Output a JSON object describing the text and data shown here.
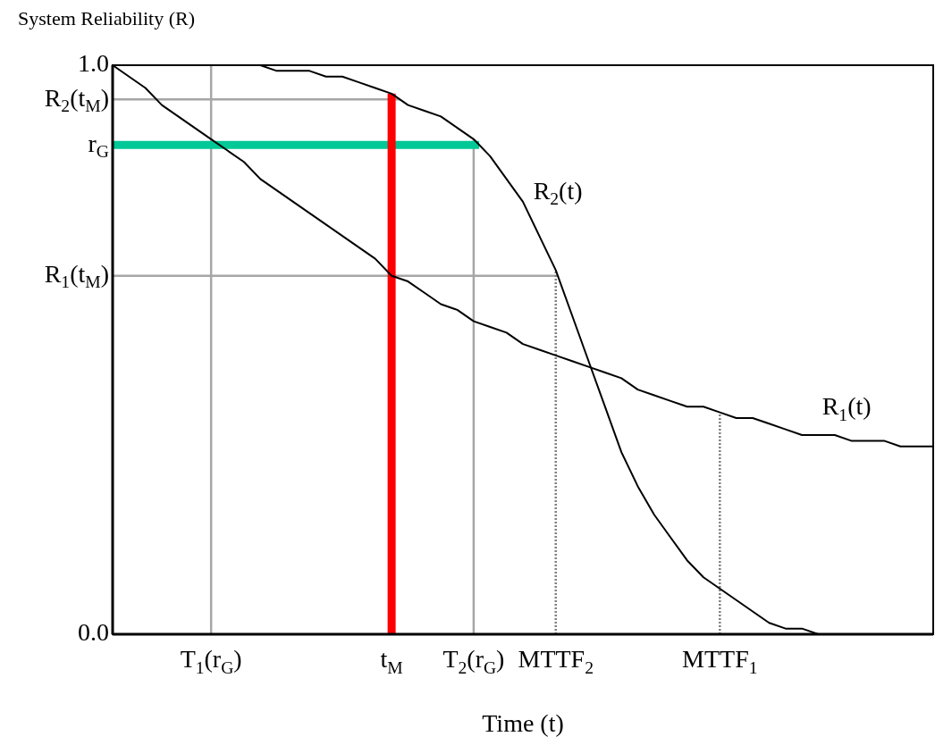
{
  "chart_data": {
    "type": "line",
    "title": "System Reliability (R)",
    "xlabel": "Time (t)",
    "categories": [
      null,
      null,
      null,
      null,
      null,
      null,
      "T$_{1}$(r$_{G}$)",
      null,
      null,
      null,
      null,
      null,
      null,
      null,
      null,
      null,
      null,
      "t$_{M}$",
      null,
      null,
      null,
      null,
      "T$_{2}$(r$_{G}$)",
      null,
      null,
      null,
      null,
      "MTTF$_{2}$",
      null,
      null,
      null,
      null,
      null,
      null,
      null,
      null,
      null,
      "MTTF$_{1}$",
      null,
      null,
      null,
      null,
      null,
      null,
      null,
      null,
      null,
      null,
      null,
      null,
      null
    ],
    "ylim": [
      0,
      1
    ],
    "yticks": [
      {
        "value": 0,
        "label": "0.0"
      },
      {
        "value": 1,
        "label": "1.0"
      }
    ],
    "series": [
      {
        "name": "R$_{1}$(t)",
        "color": "#000000",
        "values": [
          1,
          0.98,
          0.96,
          0.93,
          0.91,
          0.89,
          0.87,
          0.85,
          0.83,
          0.8,
          0.78,
          0.76,
          0.74,
          0.72,
          0.7,
          0.68,
          0.66,
          0.63,
          0.62,
          0.6,
          0.58,
          0.57,
          0.55,
          0.54,
          0.53,
          0.51,
          0.5,
          0.49,
          0.48,
          0.47,
          0.46,
          0.45,
          0.43,
          0.42,
          0.41,
          0.4,
          0.4,
          0.39,
          0.38,
          0.38,
          0.37,
          0.36,
          0.35,
          0.35,
          0.35,
          0.34,
          0.34,
          0.34,
          0.33,
          0.33,
          0.33
        ]
      },
      {
        "name": "R$_{2}$(t)",
        "color": "#000000",
        "values": [
          1,
          1,
          1,
          1,
          1,
          1,
          1,
          1,
          1,
          1,
          0.99,
          0.99,
          0.99,
          0.98,
          0.98,
          0.97,
          0.96,
          0.95,
          0.93,
          0.92,
          0.91,
          0.89,
          0.87,
          0.84,
          0.8,
          0.76,
          0.7,
          0.64,
          0.56,
          0.48,
          0.4,
          0.32,
          0.26,
          0.21,
          0.17,
          0.13,
          0.1,
          0.08,
          0.06,
          0.04,
          0.02,
          0.01,
          0.01,
          0,
          0,
          0,
          0,
          0,
          0,
          0,
          0
        ]
      }
    ],
    "ref_lines": [
      {
        "axis": "y",
        "value": 0.94,
        "label": "R$_{2}$(t$_{M}$)",
        "color": "#a6a6a6"
      },
      {
        "axis": "y",
        "value": 0.63,
        "label": "R$_{1}$(t$_{M}$)",
        "color": "#a6a6a6"
      },
      {
        "axis": "x",
        "value": "T$_{1}$(r$_{G}$)",
        "color": "#a6a6a6"
      },
      {
        "axis": "x",
        "value": "T$_{2}$(r$_{G}$)",
        "color": "#a6a6a6"
      },
      {
        "axis": "x",
        "value": "MTTF$_{2}$",
        "color": "#808080",
        "line_style": "dotted"
      },
      {
        "axis": "x",
        "value": "MTTF$_{1}$",
        "color": "#808080",
        "line_style": "dotted"
      },
      {
        "axis": "y",
        "value": 0.86,
        "label": "r$_{G}$",
        "color": "#00c896"
      },
      {
        "axis": "x",
        "value": "t$_{M}$",
        "color": "#ff0000"
      }
    ],
    "legend": false,
    "marker": "none",
    "line_style": "solid"
  }
}
